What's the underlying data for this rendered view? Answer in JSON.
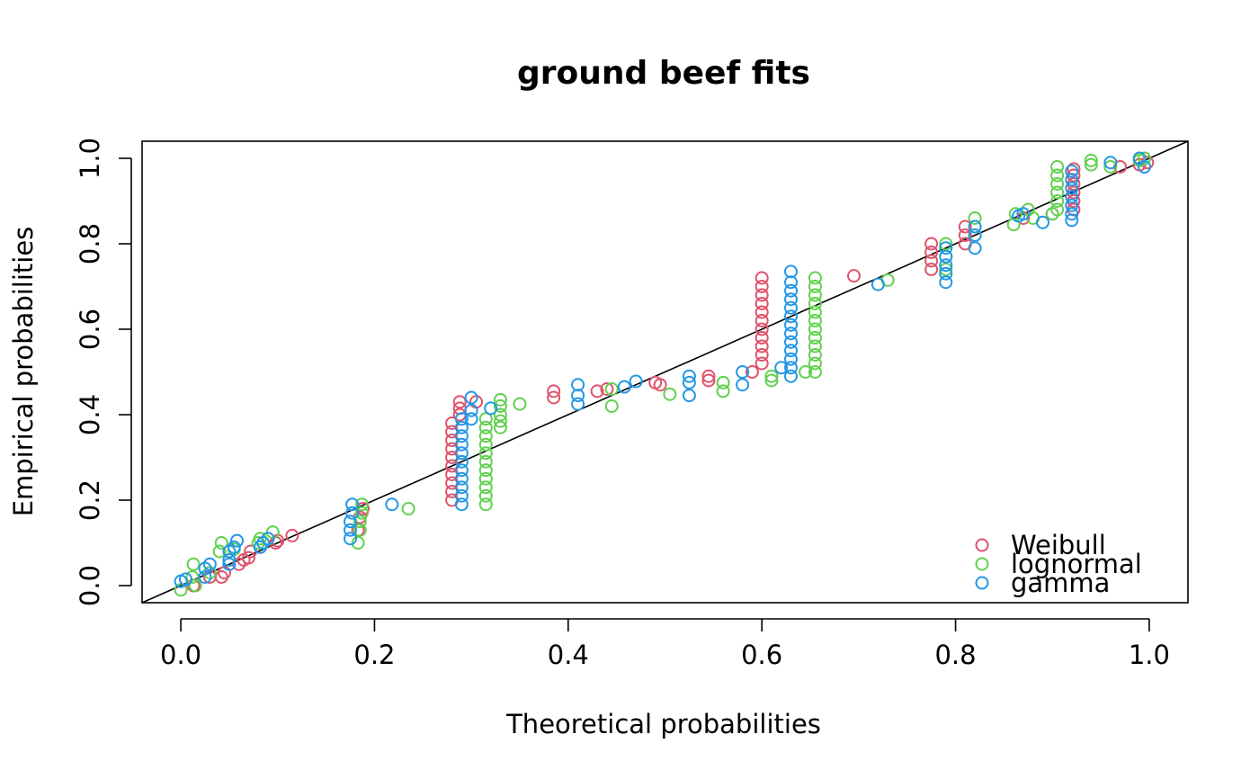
{
  "chart_data": {
    "type": "scatter",
    "title": "ground beef fits",
    "xlabel": "Theoretical probabilities",
    "ylabel": "Empirical probabilities",
    "xlim": [
      -0.04,
      1.04
    ],
    "ylim": [
      -0.04,
      1.04
    ],
    "xticks": [
      0.0,
      0.2,
      0.4,
      0.6,
      0.8,
      1.0
    ],
    "xtick_labels": [
      "0.0",
      "0.2",
      "0.4",
      "0.6",
      "0.8",
      "1.0"
    ],
    "yticks": [
      0.0,
      0.2,
      0.4,
      0.6,
      0.8,
      1.0
    ],
    "ytick_labels": [
      "0.0",
      "0.2",
      "0.4",
      "0.6",
      "0.8",
      "1.0"
    ],
    "grid": false,
    "legend_position": "bottom-right",
    "reference_line": {
      "x": [
        0,
        1
      ],
      "y": [
        0,
        1
      ],
      "color": "#000000"
    },
    "series": [
      {
        "name": "Weibull",
        "color": "#DF536B",
        "points": [
          [
            0.013,
            0.0
          ],
          [
            0.03,
            0.02
          ],
          [
            0.042,
            0.02
          ],
          [
            0.045,
            0.03
          ],
          [
            0.06,
            0.05
          ],
          [
            0.065,
            0.06
          ],
          [
            0.07,
            0.065
          ],
          [
            0.072,
            0.08
          ],
          [
            0.082,
            0.09
          ],
          [
            0.098,
            0.1
          ],
          [
            0.1,
            0.105
          ],
          [
            0.115,
            0.117
          ],
          [
            0.183,
            0.13
          ],
          [
            0.185,
            0.16
          ],
          [
            0.188,
            0.18
          ],
          [
            0.28,
            0.2
          ],
          [
            0.28,
            0.22
          ],
          [
            0.28,
            0.24
          ],
          [
            0.28,
            0.26
          ],
          [
            0.28,
            0.28
          ],
          [
            0.28,
            0.3
          ],
          [
            0.28,
            0.32
          ],
          [
            0.28,
            0.34
          ],
          [
            0.28,
            0.36
          ],
          [
            0.28,
            0.38
          ],
          [
            0.288,
            0.4
          ],
          [
            0.288,
            0.415
          ],
          [
            0.288,
            0.43
          ],
          [
            0.305,
            0.43
          ],
          [
            0.385,
            0.44
          ],
          [
            0.385,
            0.455
          ],
          [
            0.43,
            0.455
          ],
          [
            0.44,
            0.46
          ],
          [
            0.495,
            0.47
          ],
          [
            0.49,
            0.475
          ],
          [
            0.545,
            0.48
          ],
          [
            0.545,
            0.49
          ],
          [
            0.59,
            0.5
          ],
          [
            0.6,
            0.52
          ],
          [
            0.6,
            0.54
          ],
          [
            0.6,
            0.56
          ],
          [
            0.6,
            0.58
          ],
          [
            0.6,
            0.6
          ],
          [
            0.6,
            0.62
          ],
          [
            0.6,
            0.64
          ],
          [
            0.6,
            0.66
          ],
          [
            0.6,
            0.68
          ],
          [
            0.6,
            0.7
          ],
          [
            0.6,
            0.72
          ],
          [
            0.695,
            0.725
          ],
          [
            0.775,
            0.74
          ],
          [
            0.775,
            0.76
          ],
          [
            0.775,
            0.78
          ],
          [
            0.775,
            0.8
          ],
          [
            0.81,
            0.8
          ],
          [
            0.81,
            0.82
          ],
          [
            0.81,
            0.84
          ],
          [
            0.87,
            0.86
          ],
          [
            0.9,
            0.87
          ],
          [
            0.922,
            0.88
          ],
          [
            0.922,
            0.9
          ],
          [
            0.922,
            0.92
          ],
          [
            0.922,
            0.94
          ],
          [
            0.922,
            0.96
          ],
          [
            0.922,
            0.975
          ],
          [
            0.97,
            0.98
          ],
          [
            0.99,
            0.985
          ],
          [
            0.998,
            0.99
          ]
        ]
      },
      {
        "name": "lognormal",
        "color": "#61D04F",
        "points": [
          [
            0.0,
            -0.01
          ],
          [
            0.012,
            0.02
          ],
          [
            0.013,
            0.05
          ],
          [
            0.015,
            0.0
          ],
          [
            0.03,
            0.03
          ],
          [
            0.04,
            0.08
          ],
          [
            0.042,
            0.1
          ],
          [
            0.05,
            0.06
          ],
          [
            0.055,
            0.085
          ],
          [
            0.08,
            0.1
          ],
          [
            0.082,
            0.11
          ],
          [
            0.095,
            0.125
          ],
          [
            0.183,
            0.1
          ],
          [
            0.185,
            0.13
          ],
          [
            0.185,
            0.15
          ],
          [
            0.187,
            0.17
          ],
          [
            0.187,
            0.19
          ],
          [
            0.235,
            0.18
          ],
          [
            0.315,
            0.19
          ],
          [
            0.315,
            0.21
          ],
          [
            0.315,
            0.23
          ],
          [
            0.315,
            0.25
          ],
          [
            0.315,
            0.27
          ],
          [
            0.315,
            0.29
          ],
          [
            0.315,
            0.31
          ],
          [
            0.315,
            0.33
          ],
          [
            0.315,
            0.35
          ],
          [
            0.315,
            0.37
          ],
          [
            0.315,
            0.39
          ],
          [
            0.33,
            0.37
          ],
          [
            0.33,
            0.385
          ],
          [
            0.33,
            0.4
          ],
          [
            0.33,
            0.42
          ],
          [
            0.33,
            0.435
          ],
          [
            0.35,
            0.425
          ],
          [
            0.445,
            0.42
          ],
          [
            0.445,
            0.46
          ],
          [
            0.505,
            0.448
          ],
          [
            0.56,
            0.455
          ],
          [
            0.56,
            0.475
          ],
          [
            0.61,
            0.48
          ],
          [
            0.61,
            0.49
          ],
          [
            0.645,
            0.5
          ],
          [
            0.655,
            0.5
          ],
          [
            0.655,
            0.52
          ],
          [
            0.655,
            0.54
          ],
          [
            0.655,
            0.56
          ],
          [
            0.655,
            0.58
          ],
          [
            0.655,
            0.6
          ],
          [
            0.655,
            0.62
          ],
          [
            0.655,
            0.64
          ],
          [
            0.655,
            0.66
          ],
          [
            0.655,
            0.68
          ],
          [
            0.655,
            0.7
          ],
          [
            0.655,
            0.72
          ],
          [
            0.73,
            0.715
          ],
          [
            0.79,
            0.74
          ],
          [
            0.79,
            0.77
          ],
          [
            0.79,
            0.8
          ],
          [
            0.82,
            0.82
          ],
          [
            0.82,
            0.84
          ],
          [
            0.82,
            0.86
          ],
          [
            0.86,
            0.845
          ],
          [
            0.862,
            0.87
          ],
          [
            0.875,
            0.88
          ],
          [
            0.88,
            0.86
          ],
          [
            0.9,
            0.87
          ],
          [
            0.905,
            0.88
          ],
          [
            0.905,
            0.9
          ],
          [
            0.905,
            0.92
          ],
          [
            0.905,
            0.94
          ],
          [
            0.905,
            0.96
          ],
          [
            0.905,
            0.98
          ],
          [
            0.94,
            0.985
          ],
          [
            0.94,
            0.995
          ],
          [
            0.96,
            0.98
          ],
          [
            0.99,
            0.995
          ],
          [
            0.995,
            1.0
          ]
        ]
      },
      {
        "name": "gamma",
        "color": "#2297E6",
        "points": [
          [
            0.0,
            0.01
          ],
          [
            0.005,
            0.015
          ],
          [
            0.025,
            0.02
          ],
          [
            0.025,
            0.04
          ],
          [
            0.03,
            0.05
          ],
          [
            0.05,
            0.05
          ],
          [
            0.05,
            0.06
          ],
          [
            0.05,
            0.08
          ],
          [
            0.055,
            0.09
          ],
          [
            0.058,
            0.105
          ],
          [
            0.082,
            0.09
          ],
          [
            0.085,
            0.1
          ],
          [
            0.09,
            0.11
          ],
          [
            0.175,
            0.11
          ],
          [
            0.175,
            0.13
          ],
          [
            0.175,
            0.15
          ],
          [
            0.177,
            0.17
          ],
          [
            0.177,
            0.19
          ],
          [
            0.218,
            0.19
          ],
          [
            0.29,
            0.19
          ],
          [
            0.29,
            0.21
          ],
          [
            0.29,
            0.23
          ],
          [
            0.29,
            0.25
          ],
          [
            0.29,
            0.27
          ],
          [
            0.29,
            0.29
          ],
          [
            0.29,
            0.31
          ],
          [
            0.29,
            0.33
          ],
          [
            0.29,
            0.35
          ],
          [
            0.29,
            0.37
          ],
          [
            0.29,
            0.39
          ],
          [
            0.3,
            0.39
          ],
          [
            0.3,
            0.41
          ],
          [
            0.3,
            0.44
          ],
          [
            0.32,
            0.415
          ],
          [
            0.41,
            0.425
          ],
          [
            0.41,
            0.445
          ],
          [
            0.41,
            0.47
          ],
          [
            0.458,
            0.465
          ],
          [
            0.47,
            0.478
          ],
          [
            0.525,
            0.445
          ],
          [
            0.525,
            0.475
          ],
          [
            0.525,
            0.49
          ],
          [
            0.58,
            0.47
          ],
          [
            0.58,
            0.5
          ],
          [
            0.62,
            0.51
          ],
          [
            0.63,
            0.49
          ],
          [
            0.63,
            0.51
          ],
          [
            0.63,
            0.53
          ],
          [
            0.63,
            0.55
          ],
          [
            0.63,
            0.57
          ],
          [
            0.63,
            0.59
          ],
          [
            0.63,
            0.61
          ],
          [
            0.63,
            0.63
          ],
          [
            0.63,
            0.65
          ],
          [
            0.63,
            0.67
          ],
          [
            0.63,
            0.69
          ],
          [
            0.63,
            0.71
          ],
          [
            0.63,
            0.735
          ],
          [
            0.72,
            0.705
          ],
          [
            0.79,
            0.71
          ],
          [
            0.79,
            0.73
          ],
          [
            0.79,
            0.75
          ],
          [
            0.79,
            0.77
          ],
          [
            0.79,
            0.79
          ],
          [
            0.82,
            0.79
          ],
          [
            0.82,
            0.82
          ],
          [
            0.82,
            0.84
          ],
          [
            0.865,
            0.865
          ],
          [
            0.87,
            0.87
          ],
          [
            0.89,
            0.85
          ],
          [
            0.92,
            0.855
          ],
          [
            0.92,
            0.87
          ],
          [
            0.92,
            0.89
          ],
          [
            0.92,
            0.91
          ],
          [
            0.92,
            0.93
          ],
          [
            0.92,
            0.95
          ],
          [
            0.92,
            0.97
          ],
          [
            0.96,
            0.99
          ],
          [
            0.99,
            1.0
          ],
          [
            0.995,
            0.98
          ]
        ]
      }
    ]
  }
}
